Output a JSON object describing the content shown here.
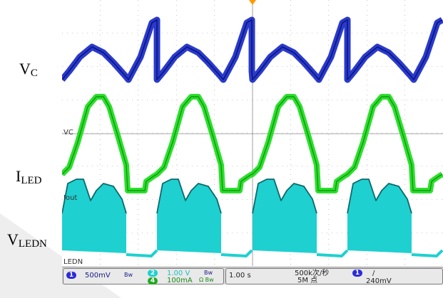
{
  "labels": {
    "vc": {
      "main": "V",
      "sub": "C"
    },
    "iled": {
      "main": "I",
      "sub": "LED"
    },
    "vledn": {
      "main": "V",
      "sub": "LEDN"
    }
  },
  "channel_tags": {
    "vc": "VC",
    "iout": "Iout",
    "ledn": "LEDN"
  },
  "status_bar": {
    "ch1": {
      "number": "1",
      "scale": "500mV",
      "coupling": "Bw",
      "color": "#2b2bd9"
    },
    "ch2": {
      "number": "2",
      "scale": "1.00 V",
      "coupling": "Bw",
      "color": "#1fd0d0"
    },
    "ch4": {
      "number": "4",
      "scale": "100mA",
      "coupling": "Ω Bw",
      "color": "#22aa22"
    },
    "timebase": "1.00 s",
    "sample_rate": "500k次/秒",
    "record_length": "5M 点",
    "trigger": {
      "number": "1",
      "slope": "/",
      "level": "240mV",
      "color": "#2b2bd9"
    }
  },
  "colors": {
    "vc": "#1f2fc8",
    "iled": "#22dd22",
    "vledn": "#1fd0d0",
    "trigger_marker": "#ff9900"
  }
}
